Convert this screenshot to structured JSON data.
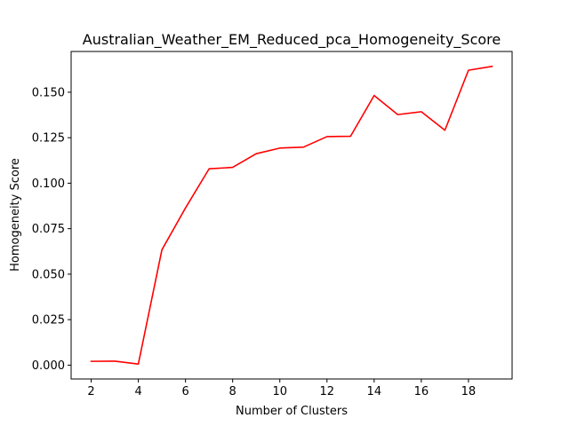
{
  "chart_data": {
    "type": "line",
    "title": "Australian_Weather_EM_Reduced_pca_Homogeneity_Score",
    "xlabel": "Number of Clusters",
    "ylabel": "Homogeneity Score",
    "x": [
      2,
      3,
      4,
      5,
      6,
      7,
      8,
      9,
      10,
      11,
      12,
      13,
      14,
      15,
      16,
      17,
      18,
      19
    ],
    "series": [
      {
        "color": "#ff0000",
        "values": [
          0.0021,
          0.0022,
          0.0006,
          0.0634,
          0.0864,
          0.1079,
          0.1087,
          0.1162,
          0.1193,
          0.1198,
          0.1256,
          0.1258,
          0.1482,
          0.1377,
          0.1393,
          0.1291,
          0.1621,
          0.1642
        ]
      }
    ],
    "xlim": [
      1.15,
      19.85
    ],
    "ylim": [
      -0.0076,
      0.1724
    ],
    "xticks": [
      2,
      4,
      6,
      8,
      10,
      12,
      14,
      16,
      18
    ],
    "xtick_labels": [
      "2",
      "4",
      "6",
      "8",
      "10",
      "12",
      "14",
      "16",
      "18"
    ],
    "yticks": [
      0.0,
      0.025,
      0.05,
      0.075,
      0.1,
      0.125,
      0.15
    ],
    "ytick_labels": [
      "0.000",
      "0.025",
      "0.050",
      "0.075",
      "0.100",
      "0.125",
      "0.150"
    ],
    "grid": false,
    "legend": "none"
  }
}
